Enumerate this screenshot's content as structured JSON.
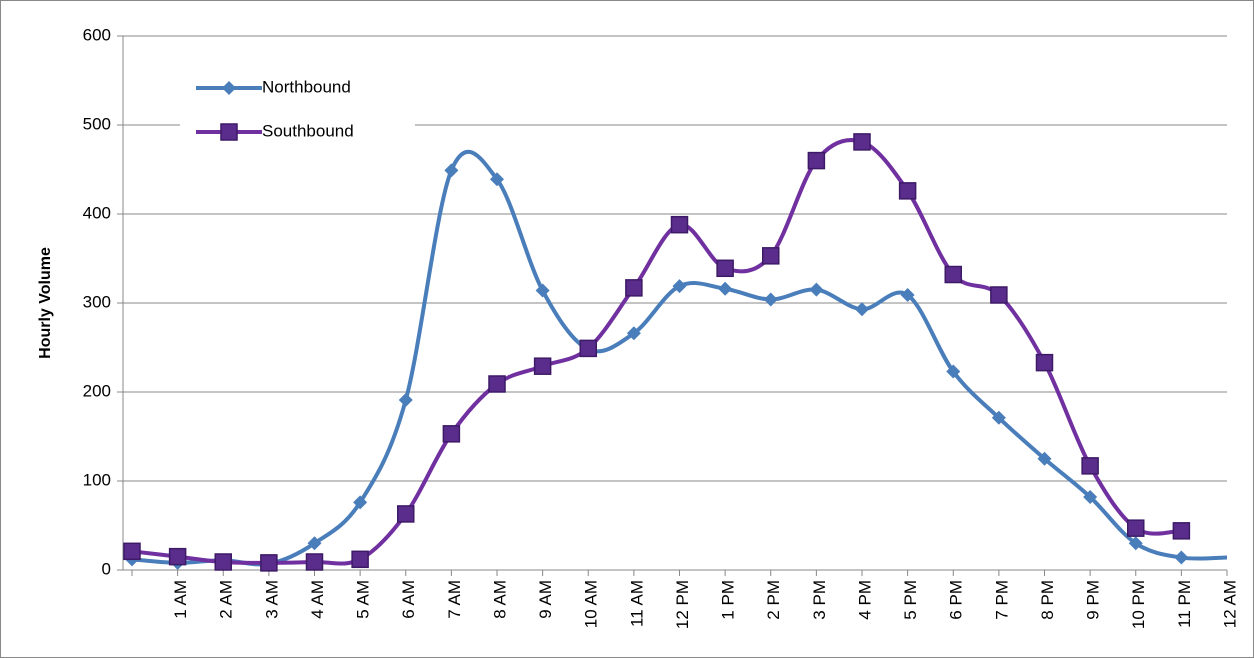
{
  "chart_data": {
    "type": "line",
    "y_label": "Hourly Volume",
    "categories": [
      null,
      "1 AM",
      "2 AM",
      "3 AM",
      "4 AM",
      "5 AM",
      "6 AM",
      "7 AM",
      "8 AM",
      "9 AM",
      "10 AM",
      "11 AM",
      "12 PM",
      "1 PM",
      "2 PM",
      "3 PM",
      "4 PM",
      "5 PM",
      "6 PM",
      "7 PM",
      "8 PM",
      "9 PM",
      "10 PM",
      "11 PM",
      "12 AM"
    ],
    "series": [
      {
        "name": "Northbound",
        "color": "#4a7ebb",
        "marker": "diamond",
        "values": [
          12,
          8,
          11,
          7,
          30,
          76,
          191,
          449,
          439,
          314,
          248,
          266,
          319,
          316,
          304,
          315,
          293,
          309,
          223,
          171,
          125,
          82,
          30,
          14,
          14
        ]
      },
      {
        "name": "Southbound",
        "color": "#7030a0",
        "marker": "square",
        "values": [
          21,
          15,
          9,
          8,
          9,
          12,
          63,
          153,
          209,
          229,
          249,
          317,
          388,
          339,
          353,
          460,
          481,
          426,
          332,
          309,
          233,
          117,
          47,
          44,
          null
        ]
      }
    ],
    "ylim": [
      0,
      600
    ],
    "yticks": [
      0,
      100,
      200,
      300,
      400,
      500,
      600
    ],
    "grid": true,
    "smooth": true,
    "legend": "top-left"
  }
}
